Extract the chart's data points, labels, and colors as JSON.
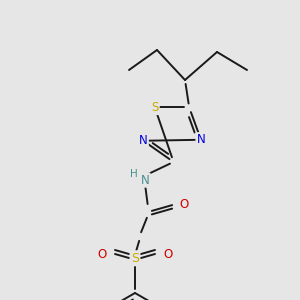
{
  "background_color": "#e6e6e6",
  "fig_width": 3.0,
  "fig_height": 3.0,
  "dpi": 100,
  "bond_lw": 1.4,
  "colors": {
    "black": "#1a1a1a",
    "S": "#ccaa00",
    "N": "#0000dd",
    "O": "#cc0000",
    "NH": "#4a9090"
  }
}
